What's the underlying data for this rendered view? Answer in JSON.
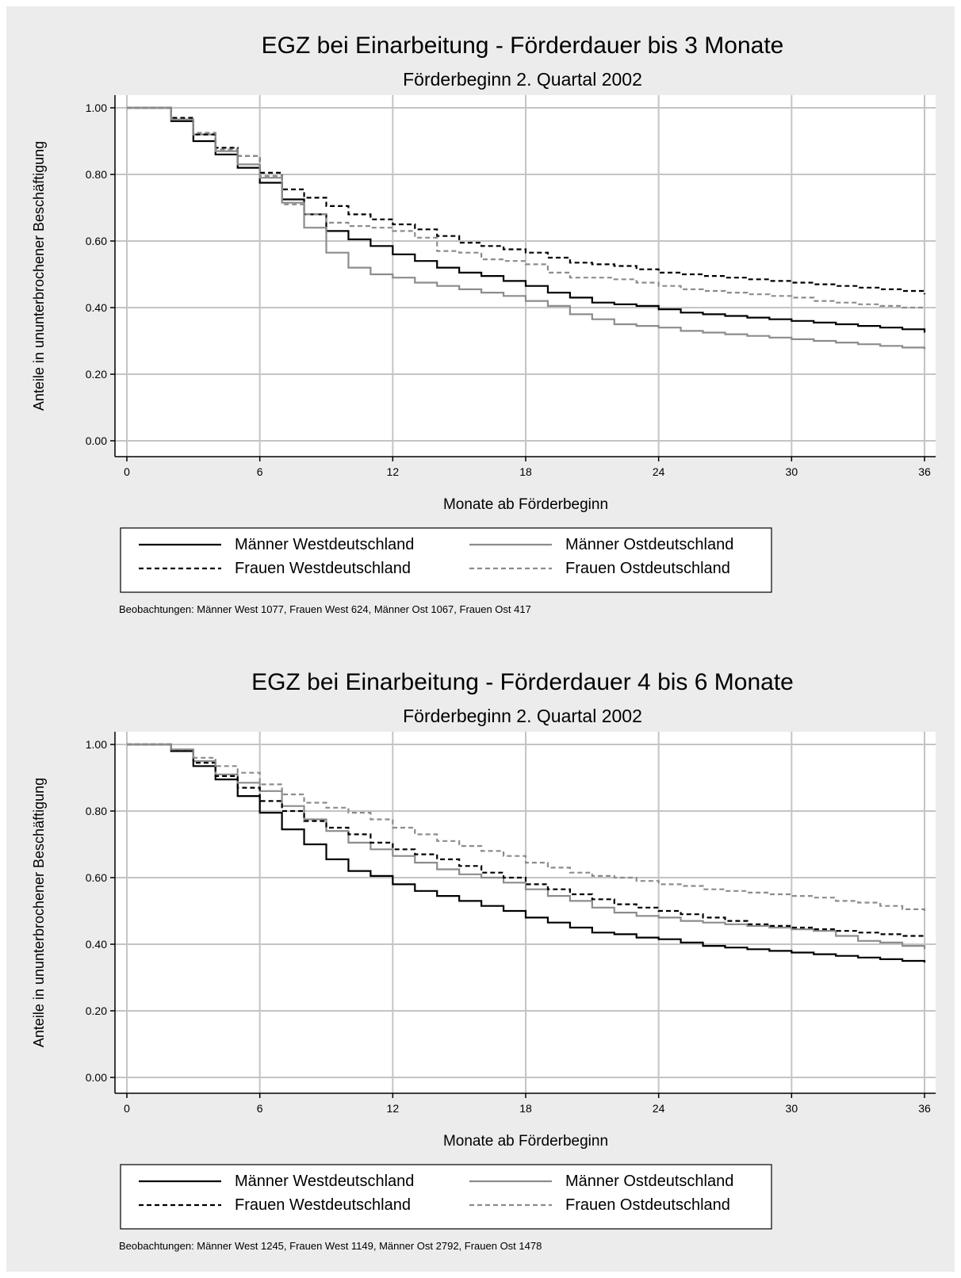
{
  "series_styles": {
    "m_west": {
      "color": "#000000",
      "dash": ""
    },
    "f_west": {
      "color": "#000000",
      "dash": "6,4"
    },
    "m_ost": {
      "color": "#8c8c8c",
      "dash": ""
    },
    "f_ost": {
      "color": "#8c8c8c",
      "dash": "6,4"
    }
  },
  "chart_data": [
    {
      "type": "line",
      "title": "EGZ bei Einarbeitung - Förderdauer bis 3 Monate",
      "subtitle": "Förderbeginn 2. Quartal 2002",
      "xlabel": "Monate ab Förderbeginn",
      "ylabel": "Anteile in ununterbrochener Beschäftigung",
      "xlim": [
        0,
        36
      ],
      "ylim": [
        0,
        1
      ],
      "xticks": [
        "0",
        "6",
        "12",
        "18",
        "24",
        "30",
        "36"
      ],
      "yticks": [
        "0.00",
        "0.20",
        "0.40",
        "0.60",
        "0.80",
        "1.00"
      ],
      "grid": true,
      "legend": {
        "position": "bottom",
        "entries": [
          "Männer Westdeutschland",
          "Männer Ostdeutschland",
          "Frauen Westdeutschland",
          "Frauen Ostdeutschland"
        ]
      },
      "note": "Beobachtungen: Männer West 1077, Frauen West 624, Männer Ost 1067, Frauen Ost 417",
      "x": [
        0,
        1,
        2,
        3,
        4,
        5,
        6,
        7,
        8,
        9,
        10,
        11,
        12,
        13,
        14,
        15,
        16,
        17,
        18,
        19,
        20,
        21,
        22,
        23,
        24,
        25,
        26,
        27,
        28,
        29,
        30,
        31,
        32,
        33,
        34,
        35,
        36
      ],
      "series": [
        {
          "name": "Männer Westdeutschland",
          "style": "m_west",
          "values": [
            1.0,
            1.0,
            0.96,
            0.9,
            0.86,
            0.82,
            0.775,
            0.725,
            0.68,
            0.63,
            0.605,
            0.585,
            0.56,
            0.54,
            0.52,
            0.505,
            0.495,
            0.48,
            0.465,
            0.445,
            0.43,
            0.415,
            0.41,
            0.405,
            0.395,
            0.385,
            0.38,
            0.375,
            0.37,
            0.365,
            0.36,
            0.355,
            0.35,
            0.345,
            0.34,
            0.335,
            0.325
          ]
        },
        {
          "name": "Männer Ostdeutschland",
          "style": "m_ost",
          "values": [
            1.0,
            1.0,
            0.965,
            0.92,
            0.87,
            0.83,
            0.79,
            0.715,
            0.64,
            0.565,
            0.52,
            0.5,
            0.49,
            0.475,
            0.465,
            0.455,
            0.445,
            0.435,
            0.42,
            0.405,
            0.38,
            0.365,
            0.35,
            0.345,
            0.34,
            0.33,
            0.325,
            0.32,
            0.315,
            0.31,
            0.305,
            0.3,
            0.295,
            0.29,
            0.285,
            0.28,
            0.275
          ]
        },
        {
          "name": "Frauen Westdeutschland",
          "style": "f_west",
          "values": [
            1.0,
            1.0,
            0.97,
            0.92,
            0.88,
            0.855,
            0.805,
            0.755,
            0.73,
            0.705,
            0.68,
            0.665,
            0.65,
            0.635,
            0.615,
            0.595,
            0.585,
            0.575,
            0.565,
            0.55,
            0.535,
            0.53,
            0.525,
            0.515,
            0.505,
            0.5,
            0.495,
            0.49,
            0.485,
            0.48,
            0.475,
            0.47,
            0.465,
            0.46,
            0.455,
            0.45,
            0.44
          ]
        },
        {
          "name": "Frauen Ostdeutschland",
          "style": "f_ost",
          "values": [
            1.0,
            1.0,
            0.965,
            0.925,
            0.875,
            0.855,
            0.795,
            0.71,
            0.68,
            0.655,
            0.645,
            0.64,
            0.63,
            0.61,
            0.57,
            0.565,
            0.545,
            0.54,
            0.53,
            0.505,
            0.49,
            0.49,
            0.485,
            0.475,
            0.465,
            0.455,
            0.45,
            0.445,
            0.44,
            0.435,
            0.43,
            0.42,
            0.415,
            0.41,
            0.405,
            0.4,
            0.4
          ]
        }
      ]
    },
    {
      "type": "line",
      "title": "EGZ bei Einarbeitung - Förderdauer 4 bis 6 Monate",
      "subtitle": "Förderbeginn 2. Quartal 2002",
      "xlabel": "Monate ab Förderbeginn",
      "ylabel": "Anteile in ununterbrochener Beschäftigung",
      "xlim": [
        0,
        36
      ],
      "ylim": [
        0,
        1
      ],
      "xticks": [
        "0",
        "6",
        "12",
        "18",
        "24",
        "30",
        "36"
      ],
      "yticks": [
        "0.00",
        "0.20",
        "0.40",
        "0.60",
        "0.80",
        "1.00"
      ],
      "grid": true,
      "legend": {
        "position": "bottom",
        "entries": [
          "Männer Westdeutschland",
          "Männer Ostdeutschland",
          "Frauen Westdeutschland",
          "Frauen Ostdeutschland"
        ]
      },
      "note": "Beobachtungen: Männer West 1245, Frauen West 1149, Männer Ost 2792, Frauen Ost 1478",
      "x": [
        0,
        1,
        2,
        3,
        4,
        5,
        6,
        7,
        8,
        9,
        10,
        11,
        12,
        13,
        14,
        15,
        16,
        17,
        18,
        19,
        20,
        21,
        22,
        23,
        24,
        25,
        26,
        27,
        28,
        29,
        30,
        31,
        32,
        33,
        34,
        35,
        36
      ],
      "series": [
        {
          "name": "Männer Westdeutschland",
          "style": "m_west",
          "values": [
            1.0,
            1.0,
            0.98,
            0.935,
            0.895,
            0.845,
            0.795,
            0.745,
            0.7,
            0.655,
            0.62,
            0.605,
            0.58,
            0.56,
            0.545,
            0.53,
            0.515,
            0.5,
            0.48,
            0.465,
            0.45,
            0.435,
            0.43,
            0.42,
            0.415,
            0.405,
            0.395,
            0.39,
            0.385,
            0.38,
            0.375,
            0.37,
            0.365,
            0.36,
            0.355,
            0.35,
            0.345
          ]
        },
        {
          "name": "Männer Ostdeutschland",
          "style": "m_ost",
          "values": [
            1.0,
            1.0,
            0.985,
            0.95,
            0.91,
            0.885,
            0.86,
            0.815,
            0.775,
            0.74,
            0.705,
            0.685,
            0.665,
            0.645,
            0.625,
            0.61,
            0.6,
            0.585,
            0.565,
            0.545,
            0.53,
            0.51,
            0.495,
            0.485,
            0.48,
            0.47,
            0.465,
            0.46,
            0.455,
            0.45,
            0.445,
            0.44,
            0.425,
            0.41,
            0.405,
            0.395,
            0.385
          ]
        },
        {
          "name": "Frauen Westdeutschland",
          "style": "f_west",
          "values": [
            1.0,
            1.0,
            0.98,
            0.945,
            0.905,
            0.87,
            0.83,
            0.8,
            0.77,
            0.75,
            0.73,
            0.705,
            0.685,
            0.67,
            0.655,
            0.635,
            0.615,
            0.6,
            0.58,
            0.565,
            0.55,
            0.535,
            0.52,
            0.51,
            0.5,
            0.49,
            0.48,
            0.47,
            0.46,
            0.455,
            0.45,
            0.445,
            0.44,
            0.435,
            0.43,
            0.425,
            0.42
          ]
        },
        {
          "name": "Frauen Ostdeutschland",
          "style": "f_ost",
          "values": [
            1.0,
            1.0,
            0.985,
            0.96,
            0.935,
            0.915,
            0.88,
            0.85,
            0.825,
            0.81,
            0.795,
            0.775,
            0.75,
            0.73,
            0.71,
            0.695,
            0.68,
            0.665,
            0.645,
            0.63,
            0.615,
            0.605,
            0.6,
            0.59,
            0.58,
            0.575,
            0.565,
            0.56,
            0.555,
            0.55,
            0.545,
            0.54,
            0.53,
            0.525,
            0.515,
            0.505,
            0.495
          ]
        }
      ]
    }
  ]
}
